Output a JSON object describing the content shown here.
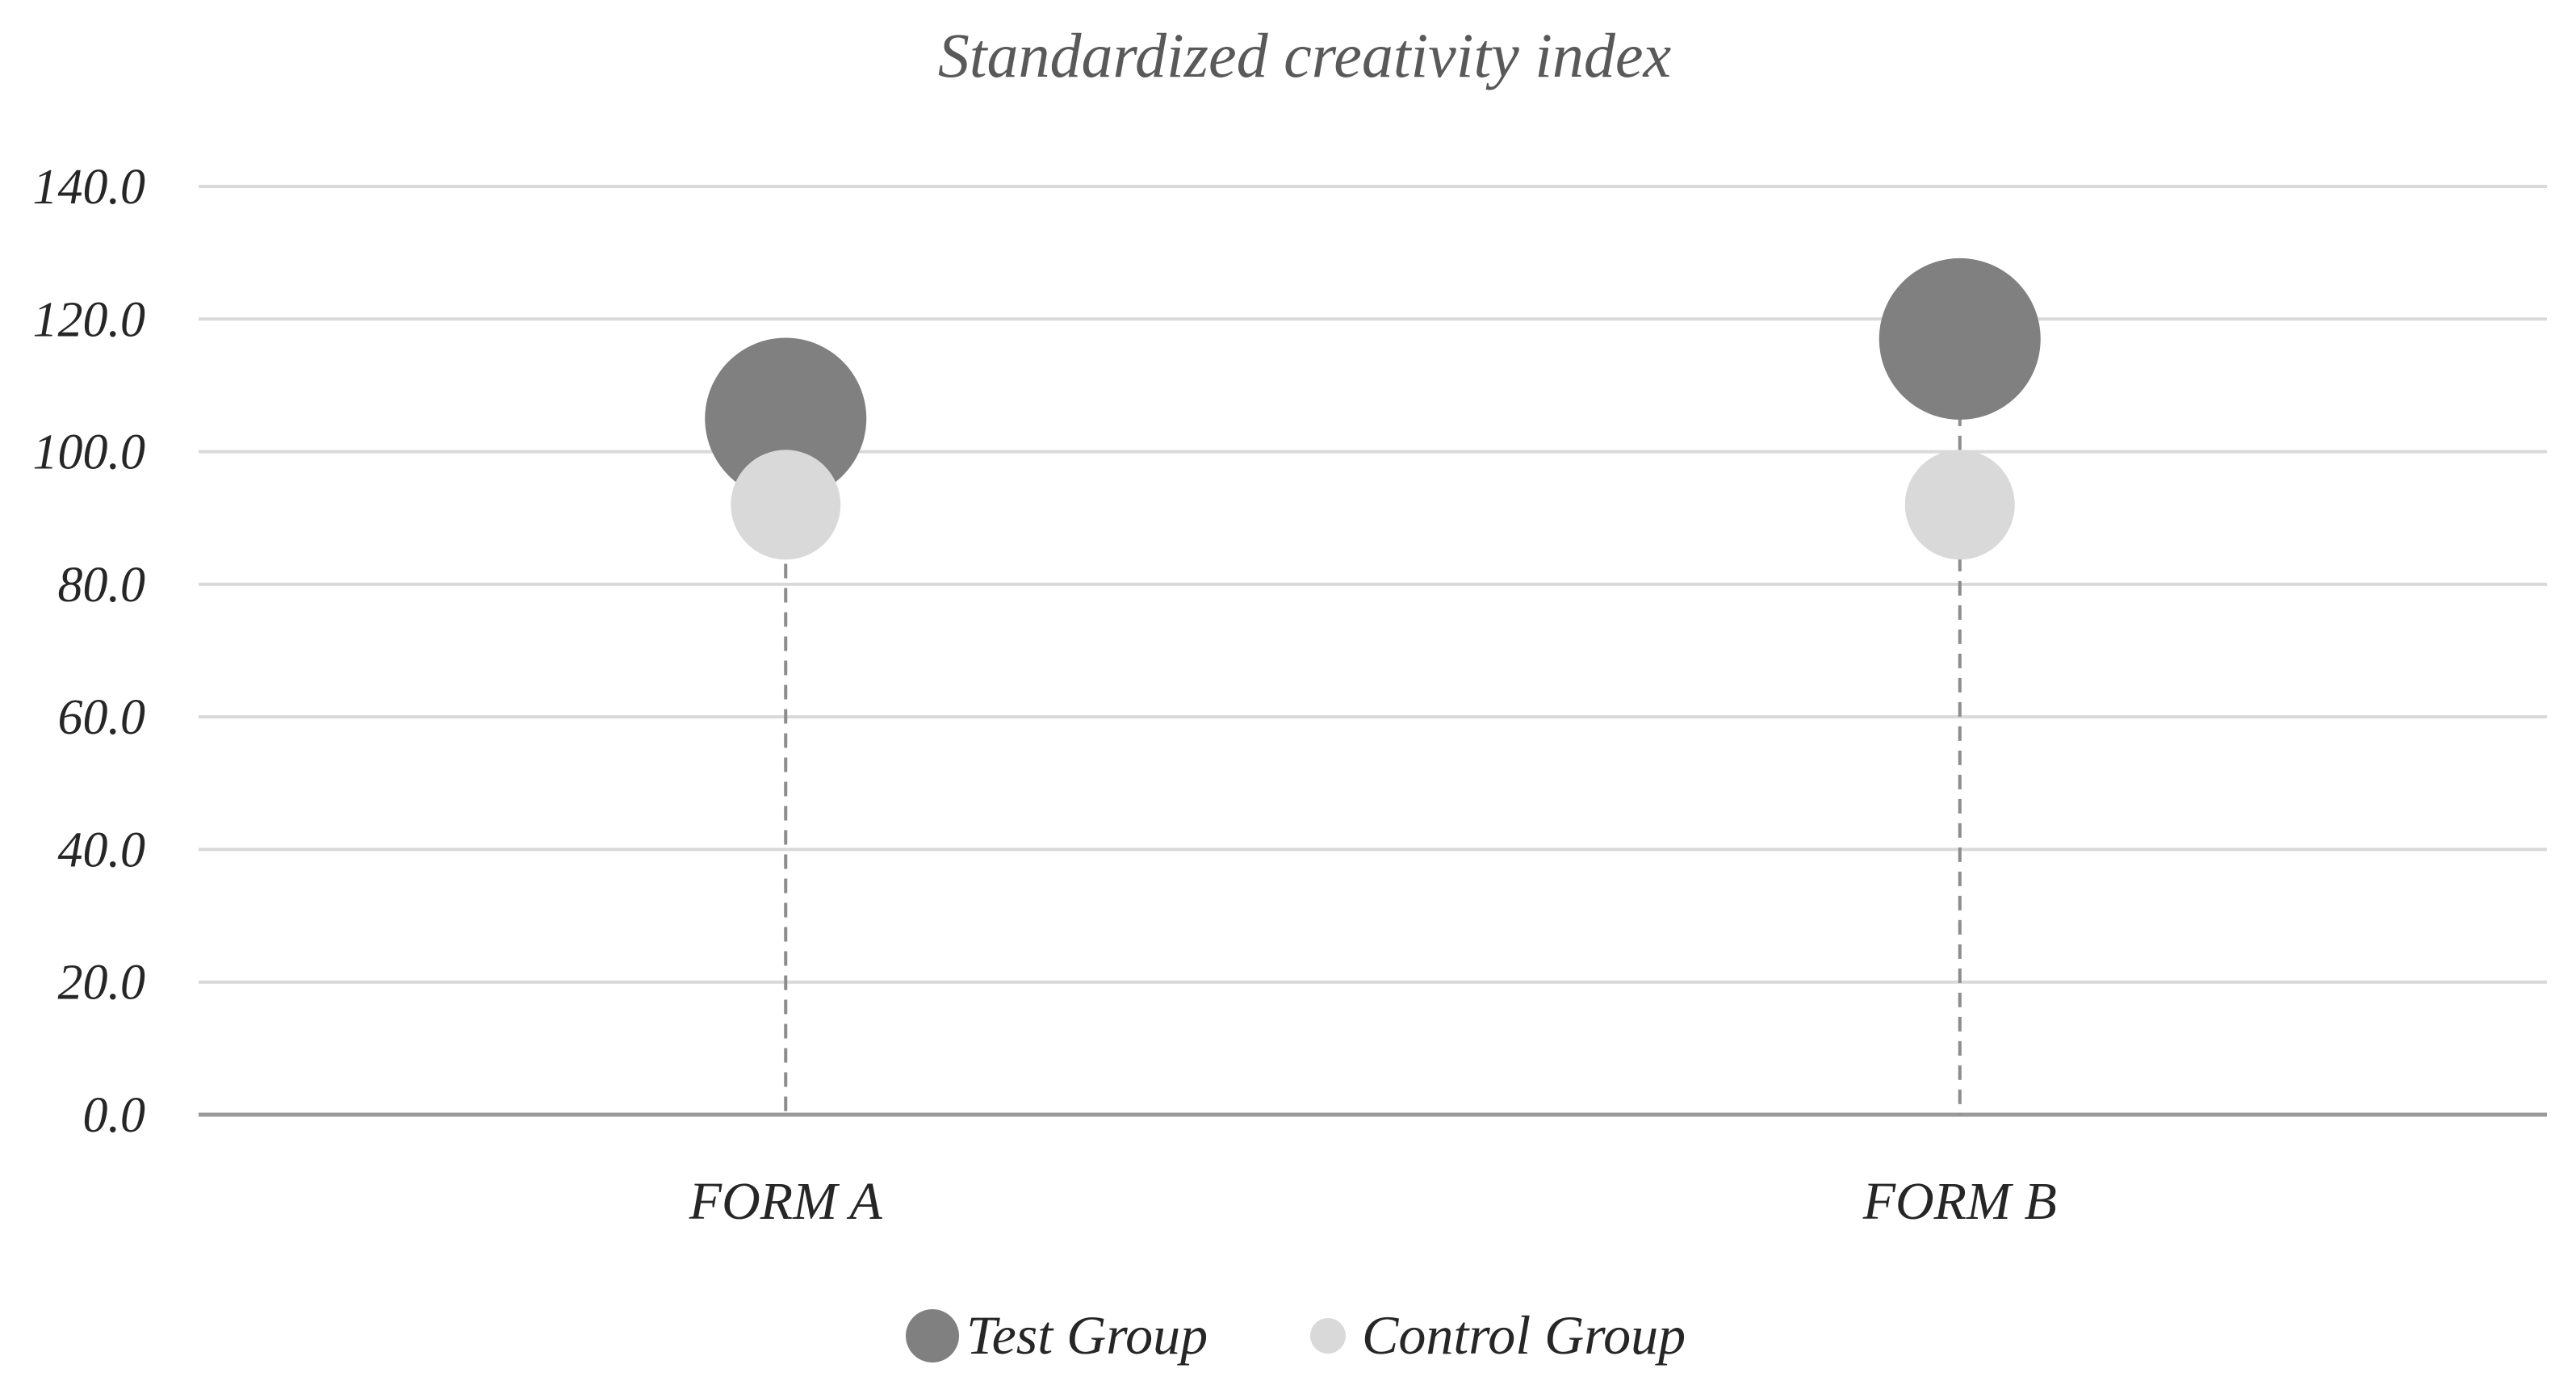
{
  "chart_data": {
    "type": "scatter",
    "title": "Standardized creativity index",
    "xlabel": "",
    "ylabel": "",
    "categories": [
      "FORM A",
      "FORM B"
    ],
    "y_ticks": [
      "0.0",
      "20.0",
      "40.0",
      "60.0",
      "80.0",
      "100.0",
      "120.0",
      "140.0"
    ],
    "ylim": [
      0,
      140
    ],
    "grid": true,
    "legend_position": "bottom",
    "series": [
      {
        "name": "Test Group",
        "values": [
          105,
          117
        ],
        "color": "#808080"
      },
      {
        "name": "Control Group",
        "values": [
          92,
          92
        ],
        "color": "#d9d9d9"
      }
    ],
    "drop_lines": "dashed"
  }
}
